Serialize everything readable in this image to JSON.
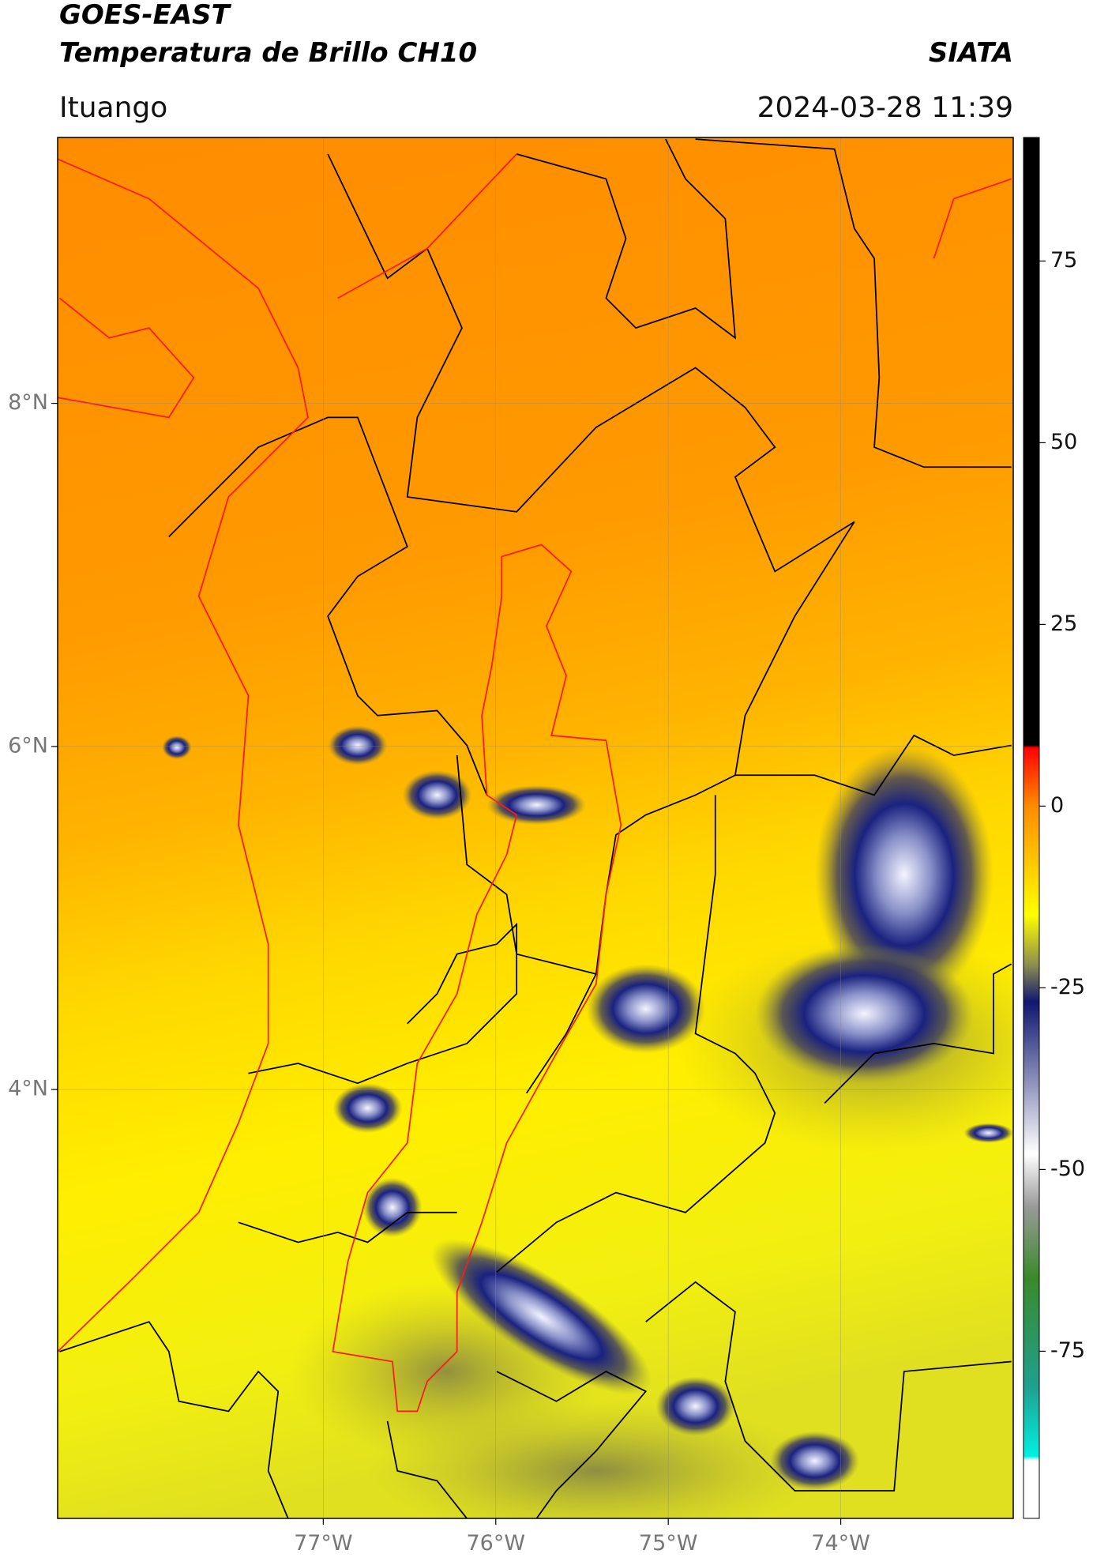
{
  "header": {
    "title": "GOES-EAST",
    "subtitle": "Temperatura de Brillo CH10",
    "source": "SIATA",
    "location": "Ituango",
    "datetime": "2024-03-28 11:39"
  },
  "map": {
    "lonlim": [
      -78.54,
      -73.0
    ],
    "latlim": [
      1.5,
      9.55
    ],
    "lonticks": [
      {
        "value": -77,
        "label": "77°W"
      },
      {
        "value": -76,
        "label": "76°W"
      },
      {
        "value": -75,
        "label": "75°W"
      },
      {
        "value": -74,
        "label": "74°W"
      }
    ],
    "latticks": [
      {
        "value": 8,
        "label": "8°N"
      },
      {
        "value": 6,
        "label": "6°N"
      },
      {
        "value": 4,
        "label": "4°N"
      }
    ]
  },
  "colorbar": {
    "lim": [
      -98,
      92
    ],
    "ticks": [
      75,
      50,
      25,
      0,
      -25,
      -50,
      -75
    ]
  }
}
